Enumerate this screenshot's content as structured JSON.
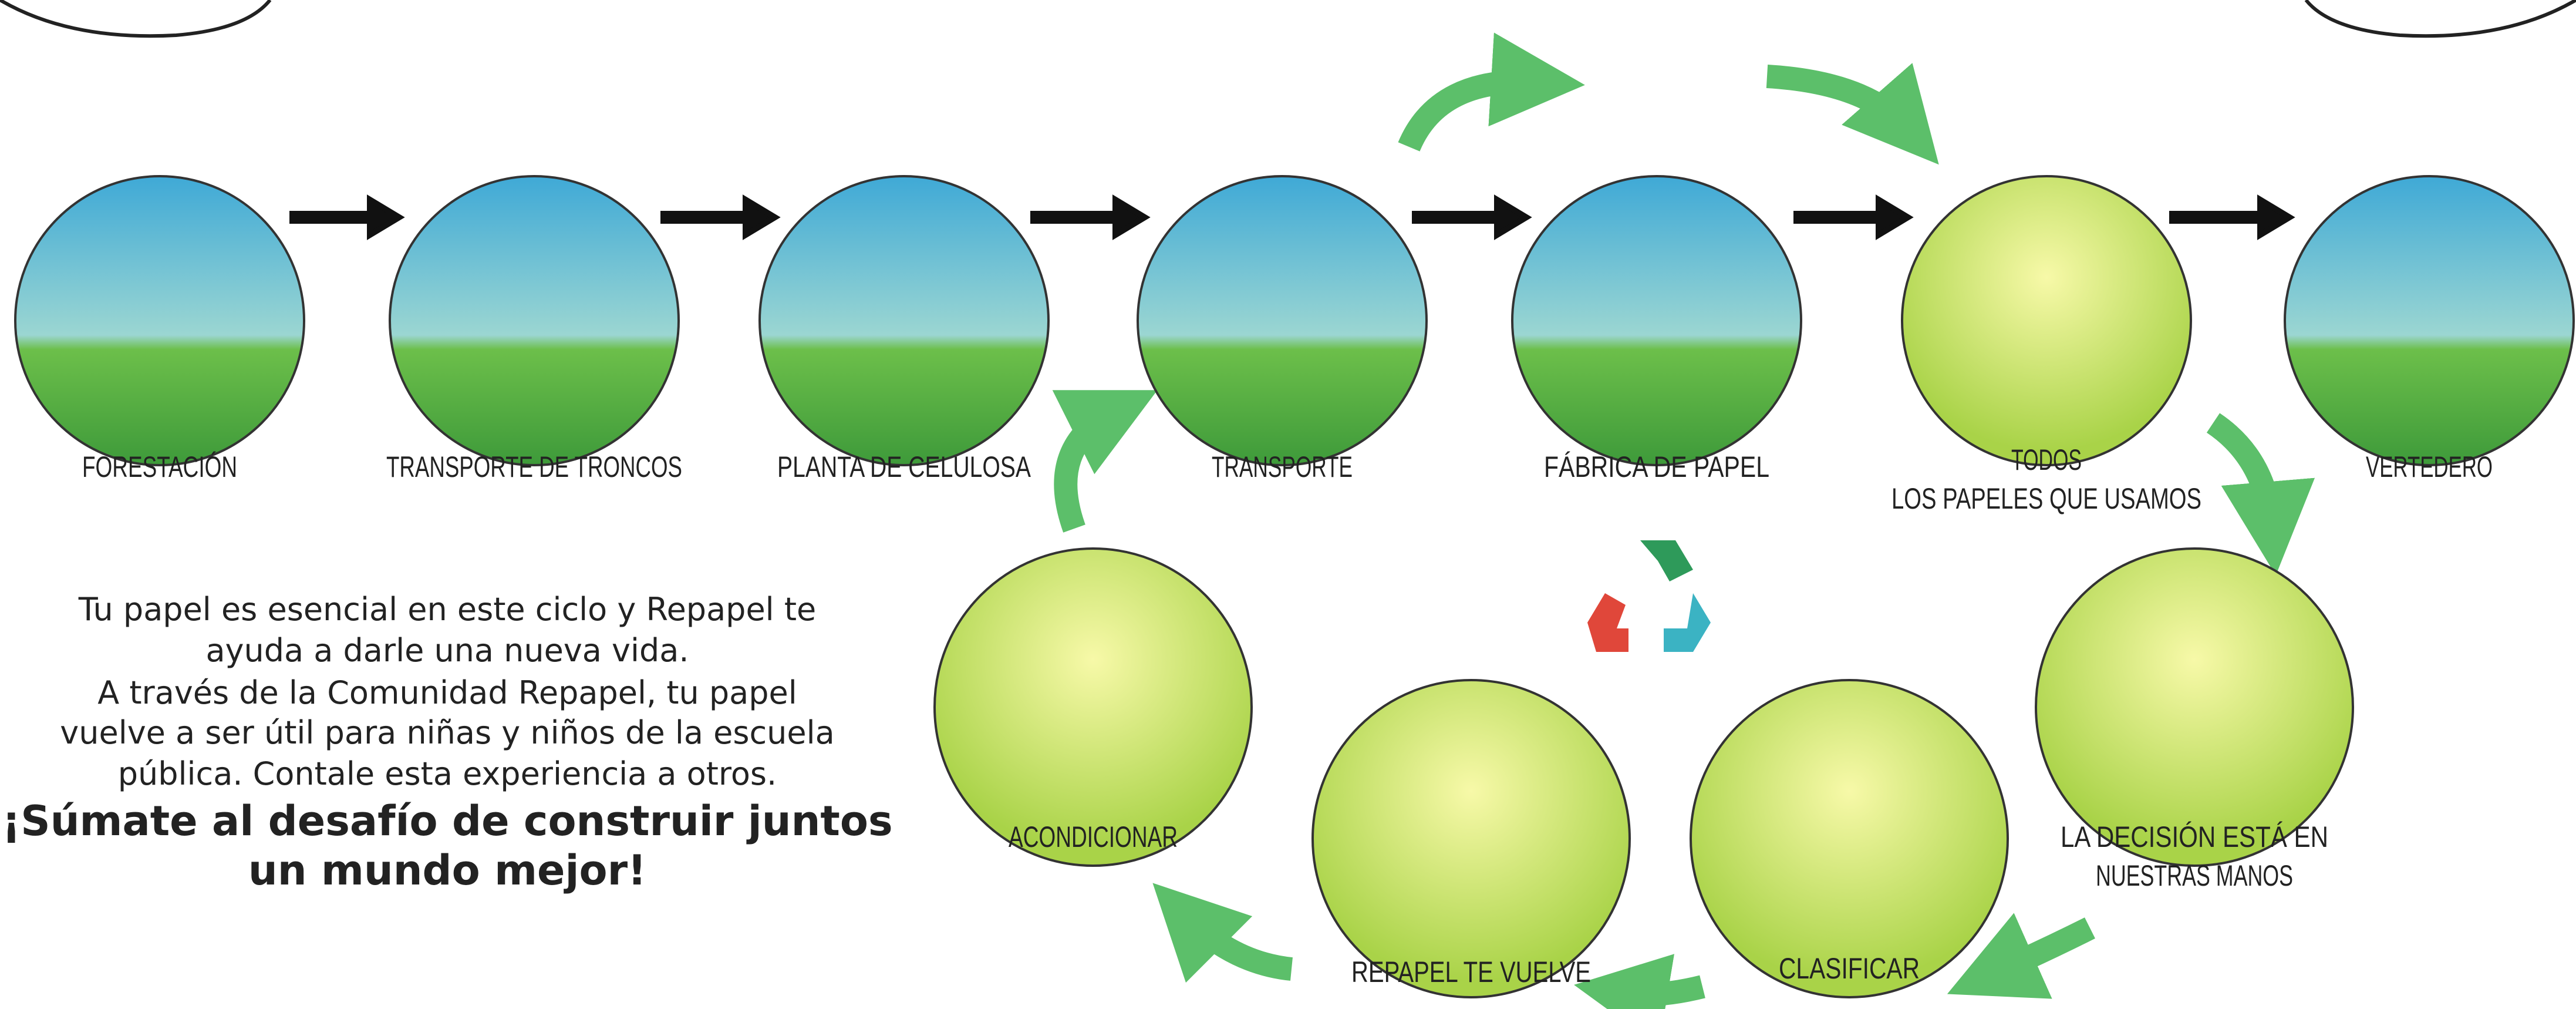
{
  "nodes": [
    {
      "lines": [
        "FORESTACIÓN"
      ]
    },
    {
      "lines": [
        "TRANSPORTE DE TRONCOS"
      ]
    },
    {
      "lines": [
        "PLANTA DE CELULOSA"
      ]
    },
    {
      "lines": [
        "TRANSPORTE"
      ]
    },
    {
      "lines": [
        "FÁBRICA DE PAPEL"
      ]
    },
    {
      "lines": [
        "TODOS",
        "LOS PAPELES QUE USAMOS"
      ]
    },
    {
      "lines": [
        "VERTEDERO"
      ]
    },
    {
      "lines": [
        "LA DECISIÓN ESTÁ EN",
        "NUESTRAS MANOS"
      ]
    },
    {
      "lines": [
        "CLASIFICAR"
      ]
    },
    {
      "lines": [
        "REPAPEL TE VUELVE"
      ]
    },
    {
      "lines": [
        "ACONDICIONAR"
      ]
    }
  ],
  "text": {
    "lines": [
      "Tu papel es esencial en este ciclo y Repapel te",
      "ayuda a darle una nueva vida.",
      "A través de la Comunidad Repapel, tu papel",
      "vuelve a ser útil para niñas y niños de la escuela",
      "pública. Contale esta experiencia a otros."
    ],
    "cta": [
      "¡Súmate al desafío de construir juntos",
      "un mundo mejor!"
    ]
  }
}
